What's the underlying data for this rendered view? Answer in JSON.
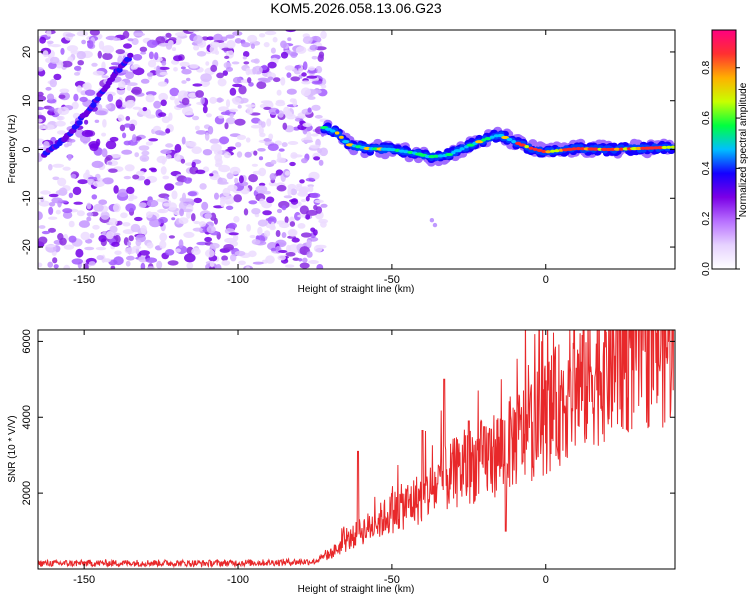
{
  "title": "KOM5.2026.058.13.06.G23",
  "chart_data": [
    {
      "type": "heatmap",
      "name": "spectrogram",
      "xlabel": "Height of straight line (km)",
      "ylabel": "Frequency (Hz)",
      "xlim": [
        -165,
        42
      ],
      "ylim": [
        -24.5,
        24.5
      ],
      "xticks": [
        -150,
        -100,
        -50,
        0
      ],
      "yticks": [
        -20,
        -10,
        0,
        10,
        20
      ],
      "xtick_labels": [
        "-150",
        "-100",
        "-50",
        "0"
      ],
      "ytick_labels": [
        "-20",
        "-10",
        "0",
        "10",
        "20"
      ],
      "colorbar": {
        "label": "Normalized spectral amplitude",
        "range": [
          0,
          0.95
        ],
        "ticks": [
          0.0,
          0.2,
          0.4,
          0.6,
          0.8
        ],
        "tick_labels": [
          "0.0",
          "0.2",
          "0.4",
          "0.6",
          "0.8"
        ],
        "colormap": [
          "#ffffff",
          "#e6d2ff",
          "#b870ff",
          "#7b00e6",
          "#1400ff",
          "#00bfff",
          "#00ff40",
          "#c8ff00",
          "#ffb000",
          "#ff3030",
          "#ff0080"
        ]
      },
      "noise_region_x": [
        -165,
        -72
      ],
      "signal_track": [
        {
          "x": -72,
          "f": 4.5
        },
        {
          "x": -68,
          "f": 3.5
        },
        {
          "x": -64,
          "f": 1.0
        },
        {
          "x": -58,
          "f": 0.2
        },
        {
          "x": -50,
          "f": 0.0
        },
        {
          "x": -42,
          "f": -0.8
        },
        {
          "x": -38,
          "f": -1.5
        },
        {
          "x": -32,
          "f": -1.2
        },
        {
          "x": -26,
          "f": 0.5
        },
        {
          "x": -20,
          "f": 2.0
        },
        {
          "x": -15,
          "f": 3.0
        },
        {
          "x": -10,
          "f": 1.5
        },
        {
          "x": -5,
          "f": 0.3
        },
        {
          "x": 0,
          "f": -0.5
        },
        {
          "x": 10,
          "f": 0.2
        },
        {
          "x": 20,
          "f": 0.0
        },
        {
          "x": 30,
          "f": 0.2
        },
        {
          "x": 42,
          "f": 0.5
        }
      ],
      "alias_track": [
        {
          "x": -163,
          "f": -1.0
        },
        {
          "x": -155,
          "f": 3.0
        },
        {
          "x": -145,
          "f": 11.0
        },
        {
          "x": -140,
          "f": 15.5
        },
        {
          "x": -135,
          "f": 19.0
        }
      ]
    },
    {
      "type": "line",
      "name": "snr",
      "xlabel": "Height of straight line (km)",
      "ylabel": "SNR (10 * V/V)",
      "xlim": [
        -165,
        42
      ],
      "ylim": [
        0,
        6300
      ],
      "xticks": [
        -150,
        -100,
        -50,
        0
      ],
      "yticks": [
        2000,
        4000,
        6000
      ],
      "xtick_labels": [
        "-150",
        "-100",
        "-50",
        "0"
      ],
      "ytick_labels": [
        "2000",
        "4000",
        "6000"
      ],
      "series": [
        {
          "name": "SNR",
          "color": "#e8282a",
          "x": [
            -165,
            -150,
            -130,
            -110,
            -90,
            -75,
            -70,
            -65,
            -60,
            -55,
            -50,
            -45,
            -40,
            -35,
            -32,
            -30,
            -25,
            -20,
            -15,
            -10,
            -5,
            0,
            5,
            10,
            15,
            20,
            25,
            30,
            35,
            42
          ],
          "y": [
            150,
            150,
            160,
            150,
            170,
            200,
            400,
            700,
            1000,
            1200,
            1500,
            1700,
            1900,
            2200,
            2400,
            2500,
            2700,
            2900,
            3100,
            3400,
            3700,
            4000,
            4400,
            4800,
            5100,
            5400,
            5600,
            5800,
            5950,
            6000
          ]
        }
      ],
      "spikes": [
        {
          "x": -61,
          "y": 3100
        },
        {
          "x": -40,
          "y": 3650
        },
        {
          "x": -33,
          "y": 5000
        },
        {
          "x": -25,
          "y": 3900
        },
        {
          "x": -20,
          "y": 3750
        },
        {
          "x": -13,
          "y": 1000
        }
      ]
    }
  ]
}
